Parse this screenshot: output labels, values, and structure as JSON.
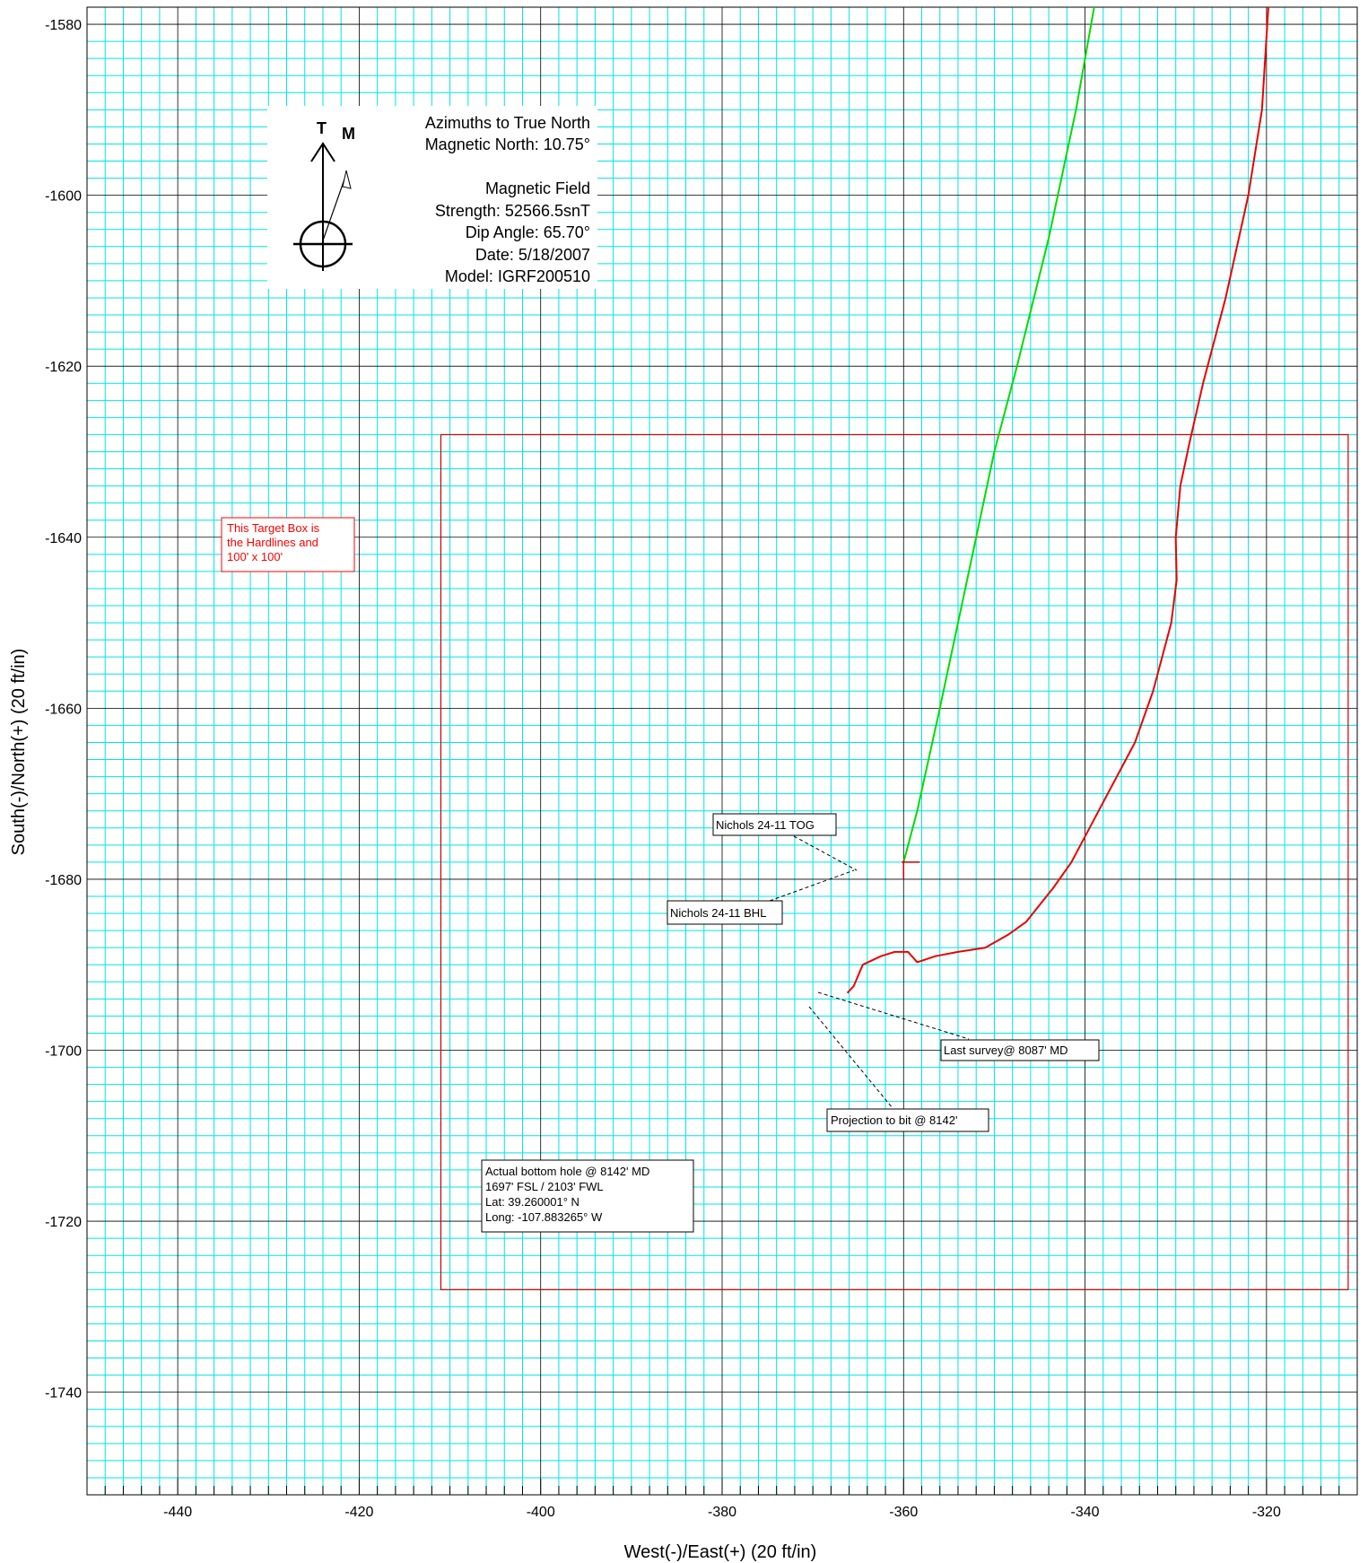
{
  "chart_data": {
    "type": "line",
    "xlabel": "West(-)/East(+) (20 ft/in)",
    "ylabel": "South(-)/North(+) (20 ft/in)",
    "xlim": [
      -450,
      -310
    ],
    "ylim": [
      -1752,
      -1578
    ],
    "x_ticks": [
      "-440",
      "-420",
      "-400",
      "-380",
      "-360",
      "-340",
      "-320"
    ],
    "y_ticks": [
      "-1580",
      "-1600",
      "-1620",
      "-1640",
      "-1660",
      "-1680",
      "-1700",
      "-1720",
      "-1740"
    ],
    "grid": "on",
    "series": [
      {
        "color": "#00dd00",
        "points": [
          [
            -339.0,
            -1578
          ],
          [
            -341.0,
            -1590
          ],
          [
            -344.0,
            -1605
          ],
          [
            -347.5,
            -1620
          ],
          [
            -350.0,
            -1630
          ],
          [
            -353.0,
            -1645
          ],
          [
            -356.0,
            -1660
          ],
          [
            -358.5,
            -1672
          ],
          [
            -360.0,
            -1678
          ]
        ]
      },
      {
        "color": "#ee0000",
        "points": [
          [
            -319.8,
            -1578
          ],
          [
            -320.5,
            -1590
          ],
          [
            -322.0,
            -1600
          ],
          [
            -324.5,
            -1612
          ],
          [
            -327.0,
            -1622
          ],
          [
            -328.5,
            -1629
          ],
          [
            -329.5,
            -1634
          ],
          [
            -330.0,
            -1640
          ],
          [
            -329.9,
            -1645
          ],
          [
            -330.5,
            -1650
          ],
          [
            -332.5,
            -1658
          ],
          [
            -334.5,
            -1664
          ],
          [
            -337.0,
            -1669
          ],
          [
            -339.5,
            -1674
          ],
          [
            -341.5,
            -1678
          ],
          [
            -343.5,
            -1681
          ],
          [
            -345.0,
            -1683
          ],
          [
            -346.5,
            -1685
          ],
          [
            -348.5,
            -1686.5
          ],
          [
            -351.0,
            -1688
          ],
          [
            -354.0,
            -1688.5
          ],
          [
            -356.5,
            -1689
          ],
          [
            -358.5,
            -1689.7
          ],
          [
            -359.5,
            -1688.5
          ],
          [
            -361.0,
            -1688.5
          ],
          [
            -362.5,
            -1689
          ],
          [
            -364.5,
            -1690
          ],
          [
            -365.5,
            -1692.5
          ],
          [
            -366.2,
            -1693.3
          ]
        ]
      }
    ],
    "target_box": {
      "color": "#cc0000",
      "x": [
        -411,
        -311
      ],
      "y": [
        -1728,
        -1628
      ]
    },
    "markers": [
      {
        "x": -360.0,
        "y": -1678.0,
        "color": "#cc0000"
      }
    ],
    "annotations": [
      {
        "id": "tog",
        "text": "Nichols 24-11 TOG",
        "x": -360.0,
        "y": -1678.0
      },
      {
        "id": "bhl",
        "text": "Nichols 24-11 BHL",
        "x": -360.0,
        "y": -1678.0
      },
      {
        "id": "last-survey",
        "text": "Last survey@ 8087' MD",
        "x": -365.0,
        "y": -1692.5
      },
      {
        "id": "projection",
        "text": "Projection to bit @ 8142'",
        "x": -366.2,
        "y": -1693.3
      }
    ],
    "target_note": [
      "This Target Box is",
      "the Hardlines and",
      "100' x 100'"
    ],
    "bottom_hole": [
      "Actual bottom hole @ 8142' MD",
      "1697' FSL / 2103' FWL",
      "Lat: 39.260001° N",
      "Long: -107.883265° W"
    ],
    "north_legend": {
      "true_label": "T",
      "mag_label": "M",
      "lines": [
        "Azimuths to True North",
        "Magnetic North: 10.75°",
        "",
        "Magnetic Field",
        "Strength: 52566.5snT",
        "Dip Angle: 65.70°",
        "Date: 5/18/2007",
        "Model: IGRF200510"
      ]
    }
  }
}
